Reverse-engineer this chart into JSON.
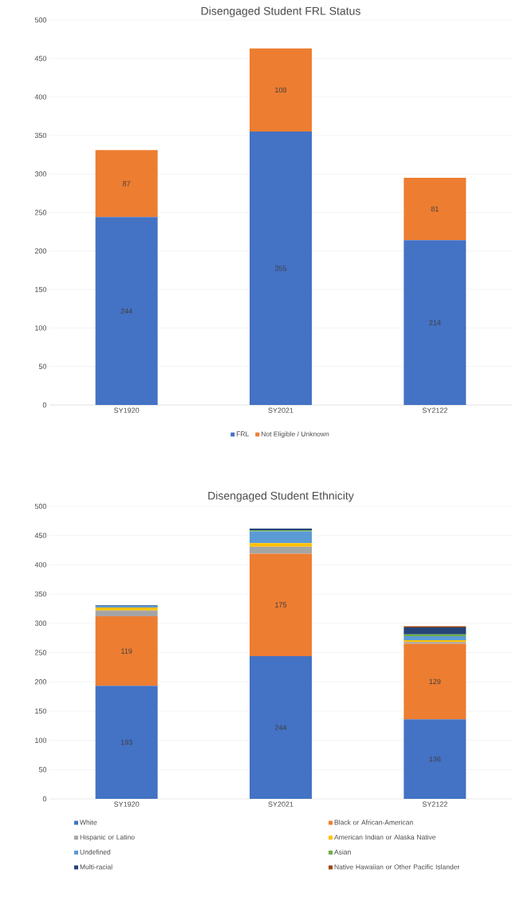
{
  "chart_data": [
    {
      "type": "bar",
      "title": "Disengaged Student FRL Status",
      "categories": [
        "SY1920",
        "SY2021",
        "SY2122"
      ],
      "stacked": true,
      "ylim": [
        0,
        500
      ],
      "yticks": [
        0,
        50,
        100,
        150,
        200,
        250,
        300,
        350,
        400,
        450,
        500
      ],
      "grid": "y",
      "legend": "bottom",
      "series": [
        {
          "name": "FRL",
          "color": "#4472c4",
          "values": [
            244,
            355,
            214
          ],
          "value_labels": [
            "244",
            "355",
            "214"
          ]
        },
        {
          "name": "Not Eligible / Unknown",
          "color": "#ed7d31",
          "values": [
            87,
            108,
            81
          ],
          "value_labels": [
            "87",
            "108",
            "81"
          ]
        }
      ]
    },
    {
      "type": "bar",
      "title": "Disengaged Student Ethnicity",
      "categories": [
        "SY1920",
        "SY2021",
        "SY2122"
      ],
      "stacked": true,
      "ylim": [
        0,
        500
      ],
      "yticks": [
        0,
        50,
        100,
        150,
        200,
        250,
        300,
        350,
        400,
        450,
        500
      ],
      "grid": "y",
      "legend": "bottom",
      "series": [
        {
          "name": "White",
          "color": "#4472c4",
          "values": [
            193,
            244,
            136
          ],
          "value_labels": [
            "193",
            "244",
            "136"
          ]
        },
        {
          "name": "Black or African-American",
          "color": "#ed7d31",
          "values": [
            119,
            175,
            129
          ],
          "value_labels": [
            "119",
            "175",
            "129"
          ]
        },
        {
          "name": "Hispanic or Latino",
          "color": "#a5a5a5",
          "values": [
            10,
            12,
            3
          ]
        },
        {
          "name": "American Indian or Alaska Native",
          "color": "#ffc000",
          "values": [
            5,
            6,
            3
          ]
        },
        {
          "name": "Undefined",
          "color": "#5b9bd5",
          "values": [
            3,
            20,
            7
          ]
        },
        {
          "name": "Asian",
          "color": "#70ad47",
          "values": [
            0,
            2,
            3
          ]
        },
        {
          "name": "Multi-racial",
          "color": "#264478",
          "values": [
            1,
            3,
            12
          ]
        },
        {
          "name": "Native Hawaiian or Other Pacific Islander",
          "color": "#9e480e",
          "values": [
            0,
            0,
            2
          ]
        }
      ]
    }
  ]
}
